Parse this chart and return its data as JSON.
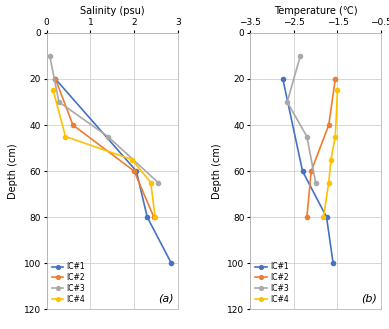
{
  "salinity": {
    "IC1": {
      "depth": [
        20,
        60,
        80,
        100
      ],
      "values": [
        0.2,
        2.05,
        2.3,
        2.85
      ]
    },
    "IC2": {
      "depth": [
        20,
        40,
        60,
        80
      ],
      "values": [
        0.2,
        0.6,
        2.0,
        2.45
      ]
    },
    "IC3": {
      "depth": [
        10,
        30,
        45,
        65
      ],
      "values": [
        0.07,
        0.28,
        1.4,
        2.55
      ]
    },
    "IC4": {
      "depth": [
        25,
        45,
        55,
        65,
        80
      ],
      "values": [
        0.15,
        0.43,
        1.95,
        2.38,
        2.48
      ]
    }
  },
  "temperature": {
    "IC1": {
      "depth": [
        20,
        60,
        80,
        100
      ],
      "values": [
        -2.75,
        -2.3,
        -1.75,
        -1.6
      ]
    },
    "IC2": {
      "depth": [
        20,
        40,
        60,
        80
      ],
      "values": [
        -1.55,
        -1.7,
        -2.1,
        -2.2
      ]
    },
    "IC3": {
      "depth": [
        10,
        30,
        45,
        65
      ],
      "values": [
        -2.35,
        -2.65,
        -2.2,
        -2.0
      ]
    },
    "IC4": {
      "depth": [
        25,
        45,
        55,
        65,
        80
      ],
      "values": [
        -1.5,
        -1.55,
        -1.65,
        -1.7,
        -1.82
      ]
    }
  },
  "colors": {
    "IC1": "#4472C4",
    "IC2": "#ED7D31",
    "IC3": "#A9A9A9",
    "IC4": "#FFC000"
  },
  "salinity_xlim": [
    0,
    3
  ],
  "salinity_xticks": [
    0,
    1,
    2,
    3
  ],
  "temperature_xlim": [
    -3.5,
    -0.5
  ],
  "temperature_xticks": [
    -3.5,
    -2.5,
    -1.5,
    -0.5
  ],
  "ylim": [
    120,
    0
  ],
  "yticks": [
    0,
    20,
    40,
    60,
    80,
    100,
    120
  ],
  "ylabel": "Depth (cm)",
  "salinity_xlabel": "Salinity (psu)",
  "temperature_xlabel": "Temperature (℃)",
  "label_a": "(a)",
  "label_b": "(b)",
  "background_color": "#ffffff",
  "grid_color": "#d0d0d0",
  "legend_labels": [
    "IC#1",
    "IC#2",
    "IC#3",
    "IC#4"
  ]
}
